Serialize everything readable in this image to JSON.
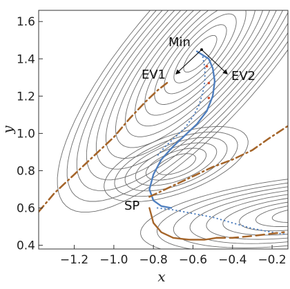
{
  "chart_data": {
    "type": "line",
    "title": "",
    "xlabel": "x",
    "ylabel": "y",
    "xlim": [
      -1.38,
      -0.12
    ],
    "ylim": [
      0.38,
      1.66
    ],
    "x_ticks": [
      -1.2,
      -1.0,
      -0.8,
      -0.6,
      -0.4,
      -0.2
    ],
    "x_tick_labels": [
      "−1.2",
      "−1.0",
      "−0.8",
      "−0.6",
      "−0.4",
      "−0.2"
    ],
    "y_ticks": [
      0.4,
      0.6,
      0.8,
      1.0,
      1.2,
      1.4,
      1.6
    ],
    "y_tick_labels": [
      "0.4",
      "0.6",
      "0.8",
      "1.0",
      "1.2",
      "1.4",
      "1.6"
    ],
    "grid": false,
    "colors": {
      "contour": "#6a6a6a",
      "path_blue": "#4f7fbf",
      "path_brown": "#a5652a",
      "marker_red": "#d04a2a",
      "arrow": "#111111"
    },
    "annotations": [
      {
        "text": "Min",
        "x": -0.58,
        "y": 1.44
      },
      {
        "text": "EV1",
        "x": -0.8,
        "y": 1.31
      },
      {
        "text": "EV2",
        "x": -0.45,
        "y": 1.31
      },
      {
        "text": "SP",
        "x": -0.82,
        "y": 0.6
      }
    ],
    "points": {
      "min": {
        "x": -0.58,
        "y": 1.44
      },
      "sp": {
        "x": -0.82,
        "y": 0.6
      }
    },
    "series": [
      {
        "style": "solid",
        "color": "blue",
        "x": [
          -0.58,
          -0.52,
          -0.5,
          -0.49,
          -0.5,
          -0.53,
          -0.58,
          -0.64,
          -0.7,
          -0.76,
          -0.8,
          -0.82,
          -0.8,
          -0.76,
          -0.71
        ],
        "y": [
          1.44,
          1.4,
          1.35,
          1.28,
          1.2,
          1.12,
          1.05,
          0.99,
          0.93,
          0.86,
          0.78,
          0.7,
          0.64,
          0.61,
          0.6
        ]
      },
      {
        "style": "dotted",
        "color": "blue",
        "x": [
          -0.55,
          -0.54,
          -0.54,
          -0.55,
          -0.57,
          -0.6,
          -0.64,
          -0.69,
          -0.74,
          -0.78
        ],
        "y": [
          1.41,
          1.35,
          1.28,
          1.22,
          1.15,
          1.09,
          1.03,
          0.98,
          0.93,
          0.88
        ]
      },
      {
        "style": "dotted",
        "color": "blue",
        "x": [
          -0.78,
          -0.7,
          -0.6,
          -0.5,
          -0.4,
          -0.3,
          -0.2,
          -0.14
        ],
        "y": [
          0.6,
          0.59,
          0.57,
          0.55,
          0.52,
          0.49,
          0.47,
          0.46
        ]
      },
      {
        "style": "dashdot",
        "color": "brown",
        "x": [
          -1.38,
          -1.3,
          -1.2,
          -1.1,
          -1.0,
          -0.92,
          -0.84,
          -0.78,
          -0.72
        ],
        "y": [
          0.58,
          0.68,
          0.78,
          0.88,
          0.98,
          1.08,
          1.17,
          1.23,
          1.28
        ]
      },
      {
        "style": "dashdot",
        "color": "brown",
        "x": [
          -0.82,
          -0.74,
          -0.66,
          -0.58,
          -0.5,
          -0.4,
          -0.3,
          -0.22,
          -0.12
        ],
        "y": [
          0.66,
          0.7,
          0.74,
          0.78,
          0.82,
          0.86,
          0.91,
          0.97,
          1.04
        ]
      },
      {
        "style": "solid",
        "color": "brown",
        "x": [
          -0.82,
          -0.8,
          -0.76,
          -0.7,
          -0.62,
          -0.54,
          -0.48
        ],
        "y": [
          0.6,
          0.52,
          0.47,
          0.44,
          0.43,
          0.43,
          0.44
        ]
      },
      {
        "style": "dashed",
        "color": "brown",
        "x": [
          -0.48,
          -0.4,
          -0.3,
          -0.22,
          -0.14
        ],
        "y": [
          0.44,
          0.44,
          0.45,
          0.46,
          0.47
        ]
      },
      {
        "style": "markers",
        "color": "red",
        "x": [
          -0.53,
          -0.52,
          -0.52
        ],
        "y": [
          1.36,
          1.27,
          1.19
        ]
      }
    ]
  }
}
